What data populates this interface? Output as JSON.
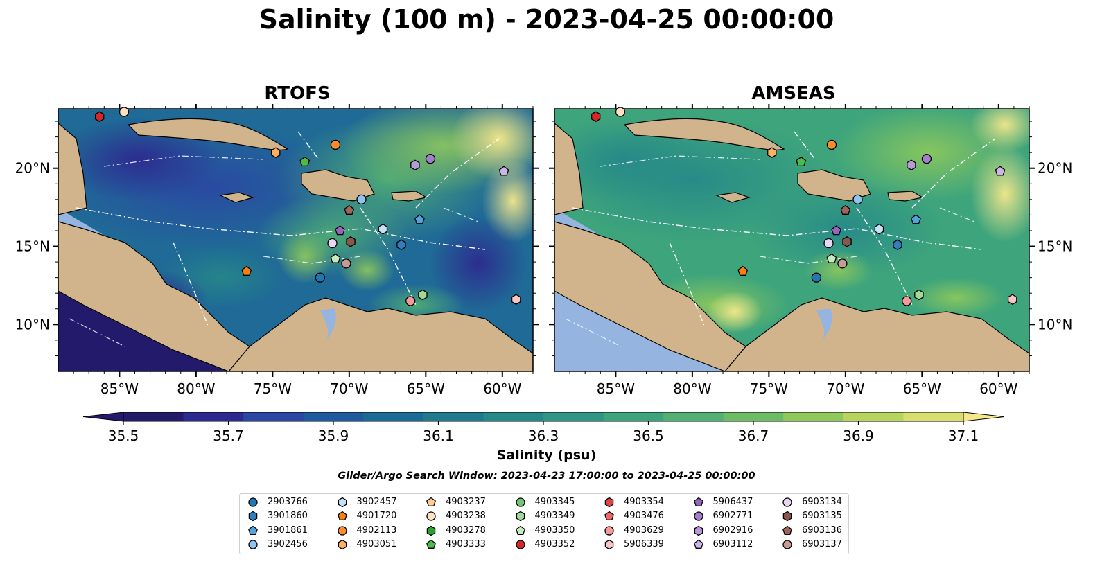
{
  "title": "Salinity (100 m) - 2023-04-25 00:00:00",
  "panels": [
    {
      "title": "RTOFS"
    },
    {
      "title": "AMSEAS"
    }
  ],
  "lon_ticks": [
    "85°W",
    "80°W",
    "75°W",
    "70°W",
    "65°W",
    "60°W"
  ],
  "lat_ticks": [
    "20°N",
    "15°N",
    "10°N"
  ],
  "colorbar": {
    "label": "Salinity (psu)",
    "ticks": [
      "35.5",
      "35.7",
      "35.9",
      "36.1",
      "36.3",
      "36.5",
      "36.7",
      "36.9",
      "37.1"
    ],
    "colors": [
      "#241a6b",
      "#2d2a8f",
      "#2b46a3",
      "#1f5a9e",
      "#1a6b96",
      "#1f7a8e",
      "#268889",
      "#309584",
      "#3da47c",
      "#52b072",
      "#6bbd65",
      "#8fc95c",
      "#b6d45e",
      "#d9df6f",
      "#f5e88b"
    ],
    "land_color": "#d2b48c",
    "shelf_color": "#95b4e0"
  },
  "search_window": "Glider/Argo Search Window: 2023-04-23 17:00:00 to 2023-04-25 00:00:00",
  "legend": [
    {
      "id": "2903766",
      "marker": "circle",
      "color": "#1f77b4"
    },
    {
      "id": "3901860",
      "marker": "hexagon",
      "color": "#2f7fc0"
    },
    {
      "id": "3901861",
      "marker": "pentagon",
      "color": "#4fa6df"
    },
    {
      "id": "3902456",
      "marker": "circle",
      "color": "#8fc4f0"
    },
    {
      "id": "3902457",
      "marker": "hexagon",
      "color": "#c6e2f6"
    },
    {
      "id": "4901720",
      "marker": "pentagon",
      "color": "#ff7f0e"
    },
    {
      "id": "4902113",
      "marker": "circle",
      "color": "#ff8c2a"
    },
    {
      "id": "4903051",
      "marker": "hexagon",
      "color": "#ffb060"
    },
    {
      "id": "4903237",
      "marker": "pentagon",
      "color": "#ffcc99"
    },
    {
      "id": "4903238",
      "marker": "circle",
      "color": "#ffe0c2"
    },
    {
      "id": "4903278",
      "marker": "hexagon",
      "color": "#2ca02c"
    },
    {
      "id": "4903333",
      "marker": "pentagon",
      "color": "#4cbb4c"
    },
    {
      "id": "4903345",
      "marker": "circle",
      "color": "#74c476"
    },
    {
      "id": "4903349",
      "marker": "hexagon",
      "color": "#a1d99b"
    },
    {
      "id": "4903350",
      "marker": "pentagon",
      "color": "#c7e9c0"
    },
    {
      "id": "4903352",
      "marker": "circle",
      "color": "#d62728"
    },
    {
      "id": "4903354",
      "marker": "hexagon",
      "color": "#e04444"
    },
    {
      "id": "4903476",
      "marker": "pentagon",
      "color": "#ee6666"
    },
    {
      "id": "4903629",
      "marker": "circle",
      "color": "#f59a9a"
    },
    {
      "id": "5906339",
      "marker": "hexagon",
      "color": "#fbc4c4"
    },
    {
      "id": "5906437",
      "marker": "pentagon",
      "color": "#9467bd"
    },
    {
      "id": "6902771",
      "marker": "circle",
      "color": "#a27fcc"
    },
    {
      "id": "6902916",
      "marker": "hexagon",
      "color": "#b89ad9"
    },
    {
      "id": "6903112",
      "marker": "pentagon",
      "color": "#cdb5e8"
    },
    {
      "id": "6903134",
      "marker": "circle",
      "color": "#ead6f4"
    },
    {
      "id": "6903135",
      "marker": "hexagon",
      "color": "#8c564b"
    },
    {
      "id": "6903136",
      "marker": "pentagon",
      "color": "#a0655a"
    },
    {
      "id": "6903137",
      "marker": "circle",
      "color": "#c49c94"
    }
  ],
  "floats_on_map": [
    {
      "lon": -86.3,
      "lat": 23.3,
      "color": "#d62728",
      "marker": "hexagon"
    },
    {
      "lon": -84.7,
      "lat": 23.6,
      "color": "#ffe0c2",
      "marker": "circle"
    },
    {
      "lon": -74.8,
      "lat": 21.0,
      "color": "#ffb060",
      "marker": "hexagon"
    },
    {
      "lon": -72.9,
      "lat": 20.4,
      "color": "#4cbb4c",
      "marker": "pentagon"
    },
    {
      "lon": -70.9,
      "lat": 21.5,
      "color": "#ff8c2a",
      "marker": "circle"
    },
    {
      "lon": -65.7,
      "lat": 20.2,
      "color": "#b89ad9",
      "marker": "hexagon"
    },
    {
      "lon": -64.7,
      "lat": 20.6,
      "color": "#a27fcc",
      "marker": "circle"
    },
    {
      "lon": -59.9,
      "lat": 19.8,
      "color": "#cdb5e8",
      "marker": "pentagon"
    },
    {
      "lon": -69.2,
      "lat": 18.0,
      "color": "#8fc4f0",
      "marker": "circle"
    },
    {
      "lon": -70.0,
      "lat": 17.3,
      "color": "#a0655a",
      "marker": "pentagon"
    },
    {
      "lon": -70.6,
      "lat": 16.0,
      "color": "#9467bd",
      "marker": "pentagon"
    },
    {
      "lon": -67.8,
      "lat": 16.1,
      "color": "#c6e2f6",
      "marker": "hexagon"
    },
    {
      "lon": -65.4,
      "lat": 16.7,
      "color": "#4fa6df",
      "marker": "pentagon"
    },
    {
      "lon": -66.6,
      "lat": 15.1,
      "color": "#2f7fc0",
      "marker": "hexagon"
    },
    {
      "lon": -71.1,
      "lat": 15.2,
      "color": "#ead6f4",
      "marker": "circle"
    },
    {
      "lon": -69.9,
      "lat": 15.3,
      "color": "#8c564b",
      "marker": "hexagon"
    },
    {
      "lon": -70.9,
      "lat": 14.2,
      "color": "#c7e9c0",
      "marker": "pentagon"
    },
    {
      "lon": -70.2,
      "lat": 13.9,
      "color": "#c49c94",
      "marker": "circle"
    },
    {
      "lon": -76.7,
      "lat": 13.4,
      "color": "#ff7f0e",
      "marker": "pentagon"
    },
    {
      "lon": -71.9,
      "lat": 13.0,
      "color": "#1f77b4",
      "marker": "circle"
    },
    {
      "lon": -65.2,
      "lat": 11.9,
      "color": "#a1d99b",
      "marker": "hexagon"
    },
    {
      "lon": -66.0,
      "lat": 11.5,
      "color": "#f59a9a",
      "marker": "circle"
    },
    {
      "lon": -59.1,
      "lat": 11.6,
      "color": "#fbc4c4",
      "marker": "hexagon"
    }
  ]
}
